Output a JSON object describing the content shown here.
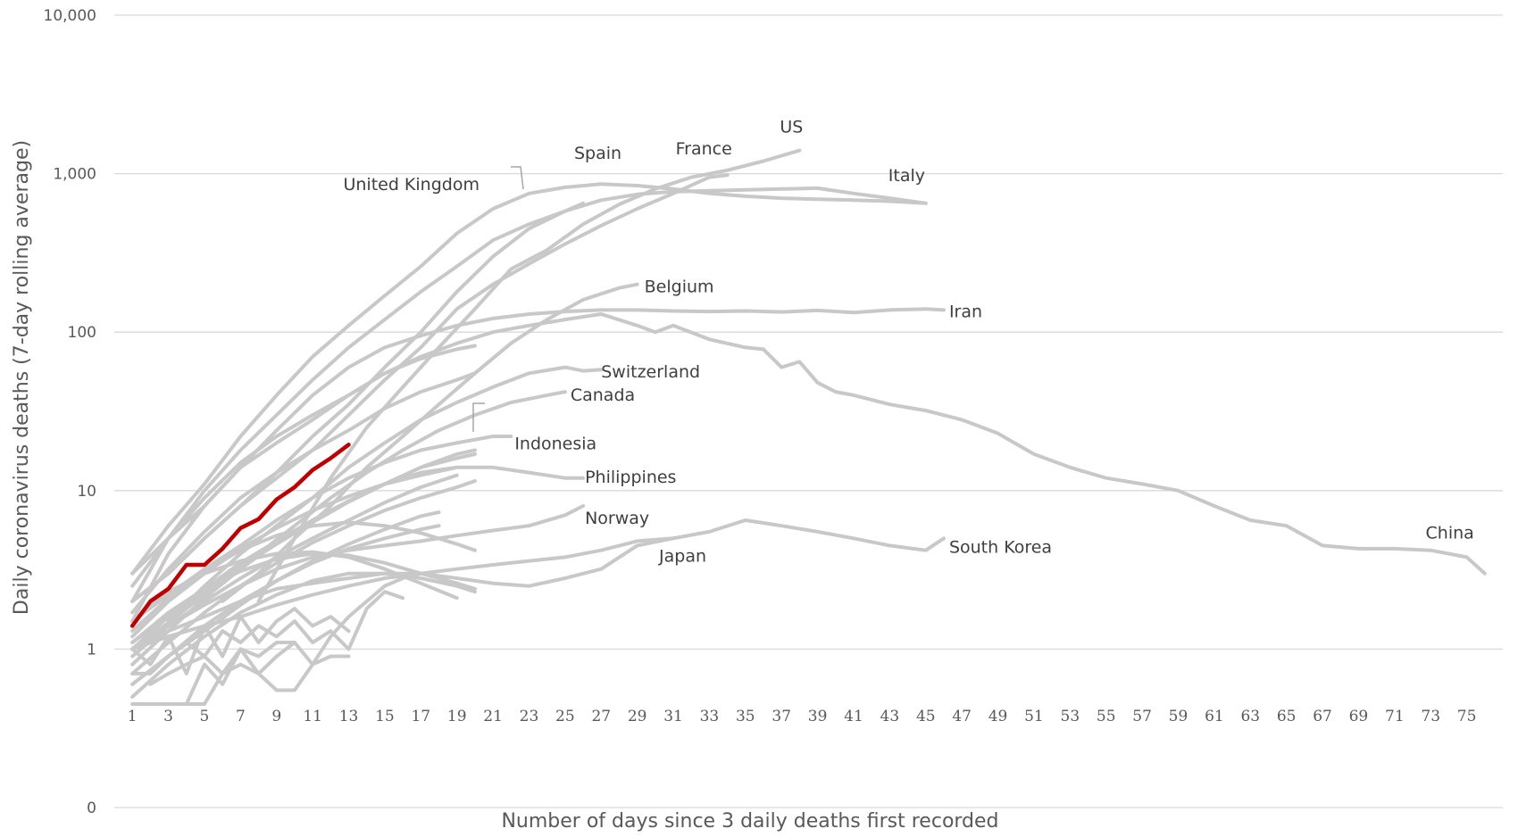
{
  "chart_data": {
    "type": "line",
    "ylabel": "Daily coronavirus deaths (7-day rolling average)",
    "xlabel": "Number of days since 3 daily deaths first recorded",
    "y_scale": "log",
    "ylim": [
      0.1,
      10000
    ],
    "yticks": [
      {
        "value": 10000,
        "label": "10,000"
      },
      {
        "value": 1000,
        "label": "1,000"
      },
      {
        "value": 100,
        "label": "100"
      },
      {
        "value": 10,
        "label": "10"
      },
      {
        "value": 1,
        "label": "1"
      },
      {
        "value": 0.1,
        "label": "0"
      }
    ],
    "xlim": [
      0,
      77
    ],
    "xticks": [
      1,
      3,
      5,
      7,
      9,
      11,
      13,
      15,
      17,
      19,
      21,
      23,
      25,
      27,
      29,
      31,
      33,
      35,
      37,
      39,
      41,
      43,
      45,
      47,
      49,
      51,
      53,
      55,
      57,
      59,
      61,
      63,
      65,
      67,
      69,
      71,
      73,
      75
    ],
    "grid": true,
    "legend": "none",
    "series": [
      {
        "name": "US",
        "x": [
          8,
          10,
          12,
          14,
          16,
          18,
          20,
          22,
          24,
          26,
          28,
          30,
          32,
          34,
          36,
          38
        ],
        "values": [
          2,
          5,
          12,
          25,
          45,
          80,
          140,
          250,
          330,
          480,
          640,
          800,
          950,
          1050,
          1200,
          1400
        ]
      },
      {
        "name": "France",
        "x": [
          1,
          3,
          5,
          7,
          9,
          11,
          13,
          15,
          17,
          19,
          21,
          23,
          25,
          27,
          29,
          31,
          33,
          34
        ],
        "values": [
          2,
          3,
          5,
          8,
          12,
          18,
          30,
          50,
          80,
          140,
          200,
          270,
          360,
          470,
          600,
          750,
          950,
          980
        ]
      },
      {
        "name": "Spain",
        "x": [
          1,
          3,
          5,
          7,
          9,
          11,
          13,
          15,
          17,
          19,
          21,
          23,
          25,
          27,
          29,
          31,
          33,
          35,
          37,
          39,
          41,
          43,
          45
        ],
        "values": [
          3,
          6,
          11,
          22,
          40,
          70,
          110,
          170,
          260,
          420,
          600,
          750,
          820,
          860,
          840,
          800,
          750,
          720,
          700,
          690,
          680,
          670,
          650
        ]
      },
      {
        "name": "United Kingdom",
        "x": [
          1,
          3,
          5,
          7,
          9,
          11,
          13,
          15,
          17,
          19,
          21,
          23,
          25,
          26
        ],
        "values": [
          2,
          3,
          5,
          8,
          13,
          22,
          35,
          60,
          100,
          180,
          300,
          450,
          580,
          650
        ]
      },
      {
        "name": "Italy",
        "x": [
          1,
          3,
          5,
          7,
          9,
          11,
          13,
          15,
          17,
          19,
          21,
          23,
          25,
          27,
          29,
          31,
          33,
          35,
          37,
          39,
          41,
          43,
          45
        ],
        "values": [
          2,
          5,
          10,
          18,
          30,
          50,
          80,
          120,
          180,
          260,
          380,
          480,
          580,
          680,
          740,
          770,
          780,
          790,
          800,
          810,
          750,
          700,
          650
        ]
      },
      {
        "name": "Belgium",
        "x": [
          6,
          8,
          10,
          12,
          14,
          16,
          18,
          20,
          22,
          24,
          26,
          28,
          29
        ],
        "values": [
          2,
          3,
          5,
          8,
          14,
          22,
          35,
          55,
          85,
          120,
          160,
          190,
          200
        ]
      },
      {
        "name": "Iran",
        "x": [
          1,
          3,
          5,
          7,
          9,
          11,
          13,
          15,
          17,
          19,
          21,
          23,
          25,
          27,
          29,
          31,
          33,
          35,
          37,
          39,
          41,
          43,
          45,
          46
        ],
        "values": [
          3,
          5,
          8,
          14,
          24,
          40,
          60,
          80,
          95,
          110,
          122,
          130,
          135,
          138,
          138,
          136,
          135,
          136,
          134,
          137,
          133,
          138,
          140,
          138
        ]
      },
      {
        "name": "China",
        "x": [
          1,
          3,
          5,
          7,
          9,
          11,
          13,
          15,
          17,
          19,
          21,
          23,
          25,
          27,
          29,
          30,
          31,
          33,
          35,
          36,
          37,
          38,
          39,
          40,
          41,
          43,
          45,
          47,
          49,
          51,
          53,
          55,
          57,
          59,
          61,
          63,
          65,
          67,
          69,
          71,
          73,
          75,
          76
        ],
        "values": [
          1.5,
          4,
          8,
          14,
          20,
          28,
          40,
          55,
          70,
          85,
          100,
          110,
          120,
          130,
          110,
          100,
          110,
          90,
          80,
          78,
          60,
          65,
          48,
          42,
          40,
          35,
          32,
          28,
          23,
          17,
          14,
          12,
          11,
          10,
          8,
          6.5,
          6,
          4.5,
          4.3,
          4.3,
          4.2,
          3.8,
          3
        ]
      },
      {
        "name": "Switzerland",
        "x": [
          3,
          5,
          7,
          9,
          11,
          13,
          15,
          17,
          19,
          21,
          23,
          25,
          26,
          27
        ],
        "values": [
          1.5,
          2.5,
          4,
          6,
          9,
          14,
          20,
          28,
          36,
          45,
          55,
          60,
          57,
          58
        ]
      },
      {
        "name": "Canada",
        "x": [
          2,
          4,
          6,
          8,
          10,
          12,
          14,
          16,
          18,
          20,
          22,
          24,
          25
        ],
        "values": [
          1.2,
          1.8,
          2.7,
          4,
          6,
          9,
          13,
          18,
          24,
          30,
          36,
          40,
          42
        ]
      },
      {
        "name": "Indonesia",
        "x": [
          1,
          3,
          5,
          7,
          9,
          11,
          13,
          15,
          17,
          19,
          21,
          22
        ],
        "values": [
          1.5,
          2.2,
          3.2,
          4.5,
          6.5,
          9,
          12,
          15,
          18,
          20,
          22,
          22
        ]
      },
      {
        "name": "Philippines",
        "x": [
          1,
          3,
          5,
          7,
          9,
          11,
          13,
          15,
          17,
          19,
          21,
          23,
          25,
          26
        ],
        "values": [
          1.1,
          1.6,
          2.3,
          3.3,
          4.6,
          6.3,
          8.5,
          11,
          13,
          14,
          14,
          13,
          12,
          12
        ]
      },
      {
        "name": "Norway",
        "x": [
          1,
          3,
          5,
          7,
          9,
          11,
          13,
          15,
          17,
          19,
          21,
          23,
          25,
          26
        ],
        "values": [
          1,
          1.4,
          1.9,
          2.5,
          3.2,
          3.8,
          4.2,
          4.5,
          4.8,
          5.2,
          5.6,
          6,
          7,
          8
        ]
      },
      {
        "name": "Japan",
        "x": [
          1,
          3,
          5,
          7,
          9,
          11,
          13,
          15,
          17,
          19,
          21,
          23,
          25,
          27,
          29,
          31
        ],
        "values": [
          1,
          1.2,
          1.4,
          1.6,
          1.9,
          2.2,
          2.5,
          2.8,
          3,
          3.2,
          3.4,
          3.6,
          3.8,
          4.2,
          4.8,
          5
        ]
      },
      {
        "name": "South Korea",
        "x": [
          1,
          3,
          5,
          7,
          9,
          11,
          13,
          15,
          17,
          19,
          21,
          23,
          25,
          27,
          29,
          31,
          33,
          35,
          37,
          39,
          41,
          43,
          45,
          46
        ],
        "values": [
          1,
          1.3,
          1.6,
          2,
          2.4,
          2.6,
          2.8,
          3,
          3,
          2.8,
          2.6,
          2.5,
          2.8,
          3.2,
          4.5,
          5,
          5.5,
          6.5,
          6,
          5.5,
          5,
          4.5,
          4.2,
          5
        ]
      }
    ],
    "other_countries": [
      {
        "x": [
          1,
          3,
          5,
          7,
          9,
          11,
          13,
          15,
          17,
          19,
          20
        ],
        "values": [
          2.5,
          5,
          9,
          15,
          22,
          30,
          40,
          55,
          68,
          78,
          82
        ]
      },
      {
        "x": [
          1,
          3,
          5,
          7,
          9,
          11,
          13,
          15,
          17,
          19,
          20
        ],
        "values": [
          1.7,
          3.2,
          5.5,
          9,
          13,
          18,
          24,
          33,
          42,
          50,
          55
        ]
      },
      {
        "x": [
          1,
          3,
          5,
          7,
          9,
          11,
          13,
          15,
          17,
          19,
          20
        ],
        "values": [
          0.8,
          1.3,
          2.1,
          3.2,
          4.7,
          6.5,
          8.6,
          11,
          14,
          16,
          17
        ]
      },
      {
        "x": [
          1,
          3,
          5,
          7,
          9,
          11,
          13,
          15,
          17,
          19,
          20
        ],
        "values": [
          0.7,
          1.1,
          1.7,
          2.5,
          3.5,
          4.7,
          6,
          7.5,
          9,
          10.5,
          11.5
        ]
      },
      {
        "x": [
          1,
          3,
          5,
          7,
          9,
          11,
          13,
          15,
          17,
          18
        ],
        "values": [
          0.6,
          0.9,
          1.3,
          1.9,
          2.7,
          3.6,
          4.6,
          5.7,
          6.9,
          7.3
        ]
      },
      {
        "x": [
          1,
          3,
          5,
          7,
          9,
          11,
          13,
          15,
          17,
          19
        ],
        "values": [
          1.2,
          2,
          3,
          4.3,
          5.8,
          7.5,
          9.2,
          11,
          12.5,
          14
        ]
      },
      {
        "x": [
          1,
          3,
          5,
          7,
          9,
          11,
          13,
          15,
          17,
          19,
          20
        ],
        "values": [
          1,
          1.6,
          2.4,
          3.5,
          4.8,
          6.5,
          8.5,
          11,
          14,
          17,
          18
        ]
      },
      {
        "x": [
          1,
          3,
          5,
          7,
          9,
          11,
          13,
          15,
          17,
          19
        ],
        "values": [
          0.9,
          1.4,
          2,
          2.8,
          3.8,
          5,
          6.5,
          8.4,
          10.5,
          12.5
        ]
      },
      {
        "x": [
          1,
          3,
          5,
          7,
          9,
          11,
          13,
          15,
          17,
          18
        ],
        "values": [
          0.6,
          0.9,
          1.4,
          2,
          2.7,
          3.5,
          4.3,
          5,
          5.7,
          6
        ]
      },
      {
        "x": [
          1,
          3,
          5,
          7,
          9,
          11,
          13,
          15,
          17,
          19,
          20
        ],
        "values": [
          1.3,
          2.1,
          3.1,
          4.2,
          5.2,
          6,
          6.3,
          6,
          5.4,
          4.6,
          4.2
        ]
      },
      {
        "x": [
          1,
          3,
          5,
          7,
          9,
          11,
          13,
          15,
          17,
          19,
          20
        ],
        "values": [
          1.1,
          1.7,
          2.4,
          3.1,
          3.7,
          4,
          3.9,
          3.5,
          3,
          2.6,
          2.4
        ]
      },
      {
        "x": [
          1,
          3,
          5,
          7,
          9,
          11,
          13,
          15,
          17,
          19,
          20
        ],
        "values": [
          0.5,
          0.8,
          1.2,
          1.7,
          2.2,
          2.7,
          3,
          3,
          2.8,
          2.5,
          2.3
        ]
      },
      {
        "x": [
          1,
          3,
          5,
          7,
          9,
          11,
          13,
          15,
          17,
          19
        ],
        "values": [
          1.5,
          2.3,
          3,
          3.6,
          4,
          4.1,
          3.8,
          3.2,
          2.6,
          2.1
        ]
      },
      {
        "x": [
          1,
          2,
          3,
          4,
          5,
          6,
          7,
          8,
          9,
          10,
          11,
          12,
          13
        ],
        "values": [
          1,
          0.8,
          1.2,
          0.7,
          1.4,
          0.9,
          1.6,
          1.1,
          1.5,
          1.8,
          1.4,
          1.6,
          1.3
        ]
      },
      {
        "x": [
          1,
          2,
          3,
          4,
          5,
          6,
          7,
          8,
          9,
          10,
          11,
          12,
          13
        ],
        "values": [
          0.45,
          0.45,
          0.45,
          0.45,
          0.8,
          0.6,
          1,
          0.7,
          0.9,
          1.1,
          0.8,
          0.9,
          0.9
        ]
      },
      {
        "x": [
          1,
          2,
          3,
          4,
          5,
          6,
          7,
          8,
          9,
          10,
          11,
          12,
          13,
          14,
          15,
          16
        ],
        "values": [
          0.7,
          0.7,
          0.9,
          1.1,
          0.9,
          1.3,
          1.1,
          1.4,
          1.2,
          1.5,
          1.1,
          1.3,
          1,
          1.8,
          2.3,
          2.1
        ]
      },
      {
        "x": [
          4,
          5,
          6,
          7,
          8,
          9,
          10,
          11,
          12,
          13,
          14,
          15,
          16,
          17
        ],
        "values": [
          0.45,
          0.45,
          0.7,
          0.8,
          0.7,
          0.55,
          0.55,
          0.8,
          1.2,
          1.6,
          2,
          2.5,
          2.8,
          3
        ]
      },
      {
        "x": [
          2,
          3,
          4,
          5,
          6,
          7,
          8,
          9,
          10
        ],
        "values": [
          0.6,
          0.7,
          0.8,
          0.9,
          0.7,
          1,
          0.9,
          1.1,
          1.1
        ]
      }
    ],
    "highlighted": {
      "x": [
        1,
        2,
        3,
        4,
        5,
        6,
        7,
        8,
        9,
        10,
        11,
        12,
        13
      ],
      "values": [
        1.4,
        2,
        2.4,
        3.4,
        3.4,
        4.3,
        5.8,
        6.6,
        8.8,
        10.5,
        13.5,
        16,
        19.5
      ]
    }
  }
}
